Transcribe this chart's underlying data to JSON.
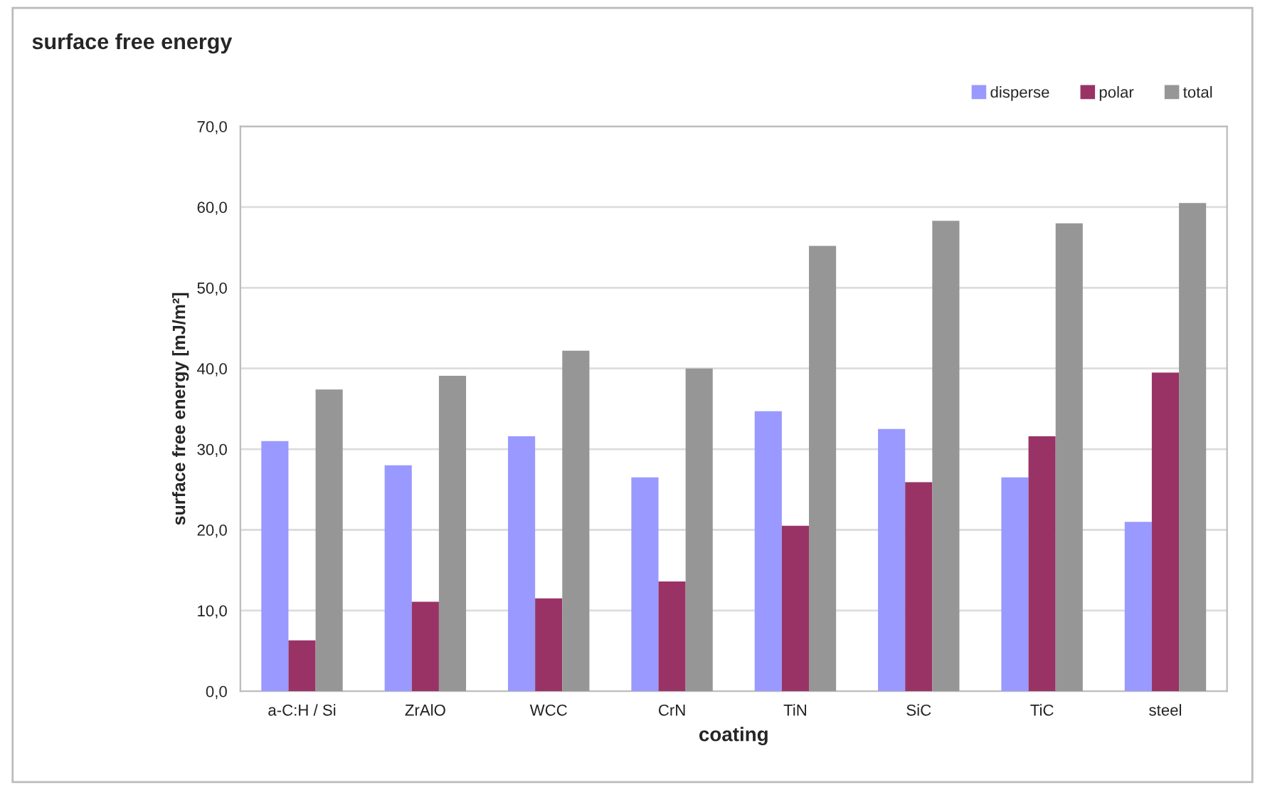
{
  "chart_data": {
    "type": "bar",
    "title": "surface free energy",
    "xlabel": "coating",
    "ylabel": "surface free energy [mJ/m²]",
    "categories": [
      "a-C:H / Si",
      "ZrAlO",
      "WCC",
      "CrN",
      "TiN",
      "SiC",
      "TiC",
      "steel"
    ],
    "series": [
      {
        "name": "disperse",
        "color": "#9999ff",
        "values": [
          31.0,
          28.0,
          31.6,
          26.5,
          34.7,
          32.5,
          26.5,
          21.0
        ]
      },
      {
        "name": "polar",
        "color": "#993366",
        "values": [
          6.3,
          11.1,
          11.5,
          13.6,
          20.5,
          25.9,
          31.6,
          39.5
        ]
      },
      {
        "name": "total",
        "color": "#969696",
        "values": [
          37.4,
          39.1,
          42.2,
          40.0,
          55.2,
          58.3,
          58.0,
          60.5
        ]
      }
    ],
    "ylim": [
      0,
      70
    ],
    "yticks": [
      {
        "value": 0,
        "label": "0,0"
      },
      {
        "value": 10,
        "label": "10,0"
      },
      {
        "value": 20,
        "label": "20,0"
      },
      {
        "value": 30,
        "label": "30,0"
      },
      {
        "value": 40,
        "label": "40,0"
      },
      {
        "value": 50,
        "label": "50,0"
      },
      {
        "value": 60,
        "label": "60,0"
      },
      {
        "value": 70,
        "label": "70,0"
      }
    ],
    "grid": "y",
    "legend": "top right"
  }
}
